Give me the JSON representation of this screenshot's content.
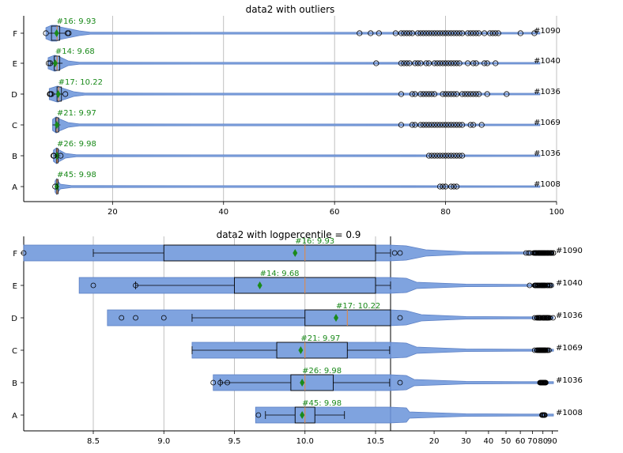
{
  "chart_data": [
    {
      "type": "violin-box",
      "title": "data2 with outliers",
      "xlim": [
        4,
        100
      ],
      "xticks": [
        "20",
        "40",
        "60",
        "80",
        "100"
      ],
      "xtick_values": [
        20,
        40,
        60,
        80,
        100
      ],
      "grid": "vertical",
      "categories": [
        "F",
        "E",
        "D",
        "C",
        "B",
        "A"
      ],
      "series": [
        {
          "label": "F",
          "annotation": "#16: 9.93",
          "count_label": "#1090",
          "mean": 9.93,
          "median": 10.0,
          "q1": 9.0,
          "q3": 10.5,
          "whisker_low": 8.5,
          "whisker_high": 11.5,
          "violin_min": 8.0,
          "violin_max": 14.0,
          "outliers_low": [
            8.0
          ],
          "outliers_high": [
            11.9,
            12.1,
            64.5,
            66.5,
            68,
            71,
            72,
            72.5,
            73,
            73.5,
            74,
            75,
            75.5,
            76,
            76.5,
            77,
            77.5,
            78,
            78.5,
            79,
            79.5,
            80,
            80.5,
            81,
            81.5,
            82,
            82.5,
            83,
            84,
            84.5,
            85,
            85.5,
            86,
            87,
            88,
            88.5,
            89,
            89.5,
            93.5,
            96
          ]
        },
        {
          "label": "E",
          "annotation": "#14: 9.68",
          "count_label": "#1040",
          "mean": 9.68,
          "median": 10.0,
          "q1": 9.5,
          "q3": 10.5,
          "whisker_low": 8.8,
          "whisker_high": 11.0,
          "violin_min": 8.4,
          "violin_max": 12.0,
          "outliers_low": [
            8.5,
            8.8
          ],
          "outliers_high": [
            67.5,
            72,
            72.5,
            73,
            73.5,
            74.5,
            75,
            75.5,
            76.5,
            77,
            78,
            78.5,
            79,
            79.5,
            80,
            80.5,
            81,
            81.5,
            82,
            82.5,
            84,
            85,
            85.5,
            87,
            87.5,
            89
          ]
        },
        {
          "label": "D",
          "annotation": "#17: 10.22",
          "count_label": "#1036",
          "mean": 10.22,
          "median": 10.3,
          "q1": 10.0,
          "q3": 10.8,
          "whisker_low": 9.2,
          "whisker_high": 11.0,
          "violin_min": 8.6,
          "violin_max": 13.0,
          "outliers_low": [
            8.7,
            8.8,
            9.0
          ],
          "outliers_high": [
            11.5,
            72,
            74,
            74.5,
            75.5,
            76,
            76.5,
            77,
            77.5,
            78,
            79.5,
            80,
            80.5,
            81,
            81.5,
            82,
            83,
            83.5,
            84,
            84.5,
            85,
            85.5,
            86,
            87.5,
            91
          ]
        },
        {
          "label": "C",
          "annotation": "#21: 9.97",
          "count_label": "#1069",
          "mean": 9.97,
          "median": 10.0,
          "q1": 9.8,
          "q3": 10.3,
          "whisker_low": 9.2,
          "whisker_high": 10.6,
          "violin_min": 9.2,
          "violin_max": 12.0,
          "outliers_low": [],
          "outliers_high": [
            72,
            74,
            74.5,
            75.5,
            76,
            76.5,
            77,
            77.5,
            78,
            78.5,
            79,
            79.5,
            80,
            80.5,
            81,
            81.5,
            82,
            82.5,
            83,
            84.5,
            85,
            86.5
          ]
        },
        {
          "label": "B",
          "annotation": "#26: 9.98",
          "count_label": "#1036",
          "mean": 9.98,
          "median": 10.0,
          "q1": 9.9,
          "q3": 10.2,
          "whisker_low": 9.4,
          "whisker_high": 10.6,
          "violin_min": 9.35,
          "violin_max": 11.5,
          "outliers_low": [
            9.35,
            9.4,
            9.45
          ],
          "outliers_high": [
            10.65,
            77,
            77.5,
            78,
            78.5,
            79,
            79.5,
            80,
            80.5,
            81,
            81.5,
            82,
            82.5,
            83
          ]
        },
        {
          "label": "A",
          "annotation": "#45: 9.98",
          "count_label": "#1008",
          "mean": 9.98,
          "median": 10.0,
          "q1": 9.93,
          "q3": 10.07,
          "whisker_low": 9.72,
          "whisker_high": 10.28,
          "violin_min": 9.65,
          "violin_max": 10.6,
          "outliers_low": [
            9.67
          ],
          "outliers_high": [
            79,
            79.5,
            80,
            81,
            81.5,
            82
          ]
        }
      ]
    },
    {
      "type": "violin-box",
      "title": "data2 with logpercentile = 0.9",
      "x_left_ticks": [
        "8.5",
        "9.0",
        "9.5",
        "10.0",
        "10.5"
      ],
      "x_left_tick_values": [
        8.5,
        9.0,
        9.5,
        10.0,
        10.5
      ],
      "x_right_ticks": [
        "20",
        "30",
        "40",
        "50",
        "60",
        "70",
        "80",
        "90"
      ],
      "x_right_tick_values": [
        20,
        30,
        40,
        50,
        60,
        70,
        80,
        90
      ],
      "grid": "vertical",
      "categories": [
        "F",
        "E",
        "D",
        "C",
        "B",
        "A"
      ]
    }
  ]
}
